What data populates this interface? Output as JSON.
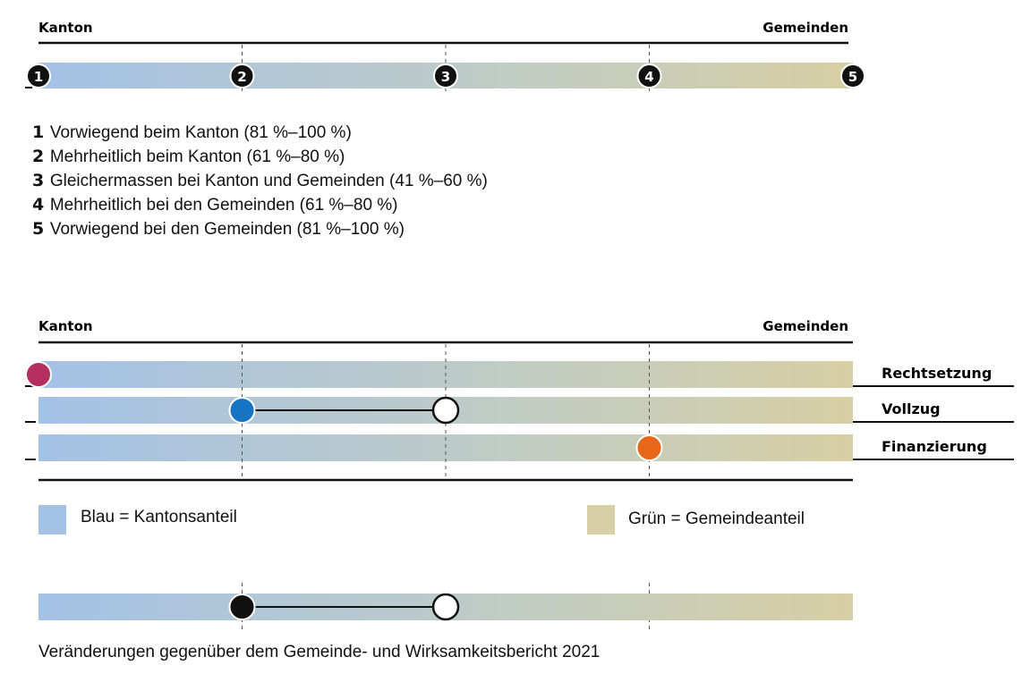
{
  "scale": {
    "left_label": "Kanton",
    "right_label": "Gemeinden",
    "steps": [
      "1",
      "2",
      "3",
      "4",
      "5"
    ],
    "gradient": {
      "start": "#a4c2e6",
      "mid": "#bccbc9",
      "end": "#d7cfa5"
    }
  },
  "legend_items": [
    {
      "num": "1",
      "text": "Vorwiegend beim Kanton (81 %–100 %)"
    },
    {
      "num": "2",
      "text": "Mehrheitlich beim Kanton (61 %–80 %)"
    },
    {
      "num": "3",
      "text": "Gleichermassen bei Kanton und Gemeinden (41 %–60 %)"
    },
    {
      "num": "4",
      "text": "Mehrheitlich bei den Gemeinden (61 %–80 %)"
    },
    {
      "num": "5",
      "text": "Vorwiegend bei den Gemeinden (81 %–100 %)"
    }
  ],
  "example": {
    "left_label": "Kanton",
    "right_label": "Gemeinden",
    "rows": [
      {
        "label": "Rechtsetzung",
        "level": 1,
        "color": "#b5305f",
        "previous_level": null
      },
      {
        "label": "Vollzug",
        "level": 2,
        "color": "#1574c4",
        "previous_level": 3
      },
      {
        "label": "Finanzierung",
        "level": 4,
        "color": "#e8671a",
        "previous_level": null
      }
    ]
  },
  "color_legend": {
    "blue": {
      "label": "Blau = Kantonsanteil",
      "color": "#a4c2e6"
    },
    "green": {
      "label": "Grün = Gemeindeanteil",
      "color": "#d7cfa5"
    }
  },
  "change_legend": {
    "level": 2,
    "previous_level": 3,
    "caption": "Veränderungen gegenüber dem Gemeinde- und Wirksamkeitsbericht 2021"
  }
}
